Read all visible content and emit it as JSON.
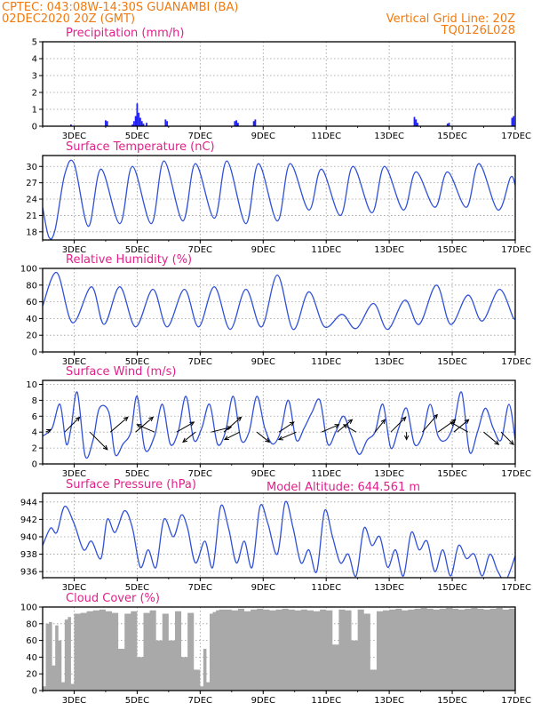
{
  "header": {
    "line1_left": "CPTEC:   043:08W-14:30S   GUANAMBI (BA)",
    "line2_left": "02DEC2020 20Z (GMT)",
    "line1_right": "Vertical Grid Line: 20Z",
    "line2_right": "TQ0126L028"
  },
  "x_axis": {
    "range_days": [
      2.0,
      17.0
    ],
    "tick_days": [
      3,
      5,
      7,
      9,
      11,
      13,
      15,
      17
    ],
    "tick_labels": [
      "3DEC",
      "5DEC",
      "7DEC",
      "9DEC",
      "11DEC",
      "13DEC",
      "15DEC",
      "17DEC"
    ]
  },
  "model_altitude_label": "Model Altitude: 644.561 m",
  "colors": {
    "line": "#3050d8",
    "bar": "#2020f0",
    "cloud": "#a9a9a9",
    "header": "#f07a10",
    "title": "#e0218a"
  },
  "chart_data": [
    {
      "type": "bar",
      "title": "Precipitation (mm/h)",
      "ylim": [
        0,
        5
      ],
      "yticks": [
        0,
        1,
        2,
        3,
        4,
        5
      ],
      "grid": true,
      "x_unit": "day of December 2020",
      "x": [
        2.9,
        4.0,
        4.05,
        4.85,
        4.9,
        4.95,
        5.0,
        5.05,
        5.1,
        5.15,
        5.2,
        5.3,
        5.9,
        5.95,
        8.1,
        8.15,
        8.2,
        8.7,
        8.75,
        13.8,
        13.85,
        13.9,
        14.85,
        14.9,
        16.9,
        16.95
      ],
      "values": [
        0.1,
        0.35,
        0.3,
        0.1,
        0.3,
        0.6,
        1.35,
        0.8,
        0.5,
        0.3,
        0.15,
        0.2,
        0.4,
        0.3,
        0.3,
        0.35,
        0.2,
        0.3,
        0.4,
        0.55,
        0.4,
        0.2,
        0.15,
        0.2,
        0.5,
        0.6
      ]
    },
    {
      "type": "line",
      "title": "Surface Temperature (nC)",
      "ylim": [
        16.5,
        32
      ],
      "yticks": [
        18,
        21,
        24,
        27,
        30
      ],
      "grid": true,
      "x": [
        2.0,
        2.2,
        2.4,
        2.7,
        3.0,
        3.45,
        3.85,
        4.45,
        4.85,
        5.45,
        5.85,
        6.45,
        6.85,
        7.45,
        7.85,
        8.45,
        8.85,
        9.45,
        9.85,
        10.45,
        10.85,
        11.45,
        11.85,
        12.45,
        12.85,
        13.45,
        13.85,
        14.45,
        14.85,
        15.45,
        15.85,
        16.45,
        16.85,
        17.0
      ],
      "values": [
        22.5,
        17.0,
        18.5,
        28.5,
        30.5,
        19.0,
        29.5,
        19.5,
        30.0,
        19.5,
        31.0,
        20.0,
        30.5,
        20.5,
        31.0,
        19.5,
        30.5,
        20.0,
        30.5,
        22.0,
        29.5,
        21.0,
        30.0,
        21.5,
        30.0,
        22.0,
        29.0,
        22.5,
        29.0,
        22.5,
        30.5,
        22.0,
        28.0,
        26.5
      ]
    },
    {
      "type": "line",
      "title": "Relative Humidity (%)",
      "ylim": [
        0,
        100
      ],
      "yticks": [
        0,
        20,
        40,
        60,
        80,
        100
      ],
      "grid": true,
      "x": [
        2.0,
        2.45,
        2.95,
        3.55,
        3.95,
        4.45,
        4.95,
        5.5,
        5.95,
        6.5,
        6.95,
        7.45,
        7.95,
        8.45,
        8.95,
        9.45,
        9.95,
        10.45,
        10.95,
        11.5,
        11.95,
        12.5,
        12.95,
        13.5,
        13.95,
        14.5,
        14.95,
        15.5,
        15.95,
        16.5,
        16.95,
        17.0
      ],
      "values": [
        55,
        95,
        35,
        78,
        33,
        78,
        30,
        75,
        30,
        75,
        30,
        78,
        27,
        75,
        30,
        92,
        27,
        72,
        30,
        45,
        28,
        58,
        27,
        62,
        33,
        80,
        33,
        68,
        37,
        75,
        40,
        50
      ]
    },
    {
      "type": "line",
      "title": "Surface Wind (m/s)",
      "ylim": [
        0,
        10.5
      ],
      "yticks": [
        0,
        2,
        4,
        6,
        8,
        10
      ],
      "grid": true,
      "x": [
        2.0,
        2.3,
        2.55,
        2.75,
        2.9,
        3.1,
        3.35,
        3.6,
        3.8,
        4.1,
        4.3,
        4.55,
        4.8,
        5.0,
        5.25,
        5.55,
        5.8,
        6.05,
        6.3,
        6.55,
        6.8,
        7.05,
        7.3,
        7.55,
        7.8,
        8.05,
        8.3,
        8.55,
        8.8,
        9.05,
        9.3,
        9.55,
        9.8,
        10.05,
        10.3,
        10.55,
        10.8,
        11.05,
        11.3,
        11.55,
        11.8,
        12.05,
        12.3,
        12.55,
        12.8,
        13.05,
        13.3,
        13.55,
        13.8,
        14.05,
        14.3,
        14.55,
        14.8,
        15.05,
        15.3,
        15.55,
        15.8,
        16.05,
        16.3,
        16.55,
        16.8,
        17.0
      ],
      "values": [
        3.5,
        4.5,
        7.5,
        2.5,
        4.5,
        9.0,
        1.0,
        3.0,
        7.0,
        6.5,
        1.2,
        2.5,
        4.0,
        8.5,
        1.8,
        3.5,
        7.5,
        2.5,
        4.0,
        8.5,
        3.0,
        4.5,
        7.5,
        2.5,
        4.0,
        8.5,
        3.0,
        4.0,
        8.5,
        4.5,
        2.5,
        4.0,
        8.0,
        3.0,
        4.5,
        6.5,
        8.0,
        2.5,
        4.0,
        6.0,
        3.5,
        1.2,
        3.0,
        4.0,
        7.5,
        2.0,
        4.5,
        7.0,
        2.5,
        3.5,
        7.5,
        3.5,
        3.0,
        5.0,
        9.0,
        1.5,
        4.0,
        7.0,
        4.5,
        3.0,
        7.5,
        3.0
      ],
      "vectors": {
        "x": [
          2.1,
          2.7,
          3.5,
          4.15,
          4.95,
          5.55,
          6.25,
          6.85,
          7.35,
          7.75,
          8.25,
          8.8,
          9.5,
          10.05,
          10.85,
          11.35,
          11.95,
          12.55,
          13.05,
          13.55,
          14.05,
          14.55,
          15.05,
          15.5,
          16.0,
          16.55
        ],
        "u": [
          2,
          6,
          7,
          7,
          7,
          -7,
          7,
          -5,
          8,
          7,
          -6,
          5,
          6,
          -7,
          7,
          6,
          -5,
          4,
          6,
          0,
          6,
          7,
          6,
          -7,
          6,
          5
        ],
        "v": [
          1,
          6,
          -7,
          6,
          6,
          3,
          4,
          -4,
          2,
          6,
          -3,
          -4,
          4,
          -3,
          3,
          5,
          3,
          5,
          6,
          -3,
          7,
          5,
          5,
          4,
          -5,
          -5
        ]
      }
    },
    {
      "type": "line",
      "title": "Surface Pressure (hPa)",
      "ylim": [
        935.3,
        945
      ],
      "yticks": [
        936,
        938,
        940,
        942,
        944
      ],
      "grid": true,
      "x": [
        2.0,
        2.25,
        2.45,
        2.7,
        3.0,
        3.3,
        3.55,
        3.85,
        4.05,
        4.3,
        4.6,
        4.85,
        5.1,
        5.35,
        5.6,
        5.85,
        6.15,
        6.4,
        6.6,
        6.85,
        7.15,
        7.4,
        7.65,
        7.9,
        8.15,
        8.4,
        8.65,
        8.9,
        9.15,
        9.45,
        9.7,
        9.95,
        10.2,
        10.45,
        10.7,
        10.95,
        11.2,
        11.45,
        11.7,
        11.95,
        12.2,
        12.45,
        12.7,
        12.95,
        13.2,
        13.45,
        13.7,
        13.95,
        14.2,
        14.45,
        14.7,
        14.95,
        15.2,
        15.45,
        15.7,
        15.95,
        16.2,
        16.45,
        16.7,
        17.0
      ],
      "values": [
        939.0,
        941.0,
        940.5,
        943.5,
        941.5,
        938.5,
        939.5,
        937.5,
        942.0,
        940.5,
        943.0,
        941.0,
        936.5,
        938.5,
        936.5,
        942.0,
        940.0,
        942.5,
        941.0,
        937.0,
        939.5,
        936.5,
        943.5,
        941.0,
        937.0,
        939.5,
        936.5,
        943.5,
        941.5,
        938.0,
        944.0,
        941.0,
        937.0,
        938.5,
        936.0,
        943.0,
        940.0,
        937.0,
        938.0,
        935.5,
        941.0,
        939.0,
        940.0,
        936.5,
        938.5,
        935.5,
        940.5,
        938.5,
        939.5,
        936.0,
        938.5,
        935.5,
        939.0,
        937.5,
        938.0,
        935.5,
        938.0,
        936.0,
        935.0,
        937.8
      ]
    },
    {
      "type": "area",
      "title": "Cloud Cover (%)",
      "ylim": [
        0,
        100
      ],
      "yticks": [
        0,
        20,
        40,
        60,
        80,
        100
      ],
      "grid": true,
      "x": [
        2.0,
        2.1,
        2.2,
        2.3,
        2.4,
        2.5,
        2.6,
        2.7,
        2.8,
        2.9,
        3.0,
        3.2,
        3.4,
        3.6,
        3.8,
        4.0,
        4.2,
        4.4,
        4.6,
        4.8,
        5.0,
        5.2,
        5.4,
        5.6,
        5.8,
        6.0,
        6.2,
        6.4,
        6.6,
        6.8,
        7.0,
        7.1,
        7.2,
        7.3,
        7.4,
        7.5,
        7.6,
        7.8,
        8.0,
        8.2,
        8.4,
        8.6,
        8.8,
        9.0,
        9.2,
        9.4,
        9.6,
        9.8,
        10.0,
        10.2,
        10.4,
        10.6,
        10.8,
        11.0,
        11.2,
        11.4,
        11.6,
        11.8,
        12.0,
        12.2,
        12.4,
        12.6,
        12.8,
        13.0,
        13.2,
        13.4,
        13.6,
        13.8,
        14.0,
        14.2,
        14.4,
        14.6,
        14.8,
        15.0,
        15.2,
        15.4,
        15.6,
        15.8,
        16.0,
        16.2,
        16.4,
        16.6,
        16.8,
        17.0
      ],
      "values": [
        5,
        80,
        82,
        30,
        78,
        60,
        10,
        85,
        88,
        8,
        92,
        93,
        95,
        96,
        97,
        95,
        93,
        50,
        92,
        95,
        40,
        93,
        96,
        60,
        92,
        60,
        95,
        40,
        93,
        25,
        5,
        50,
        10,
        92,
        94,
        96,
        97,
        97,
        96,
        98,
        95,
        97,
        98,
        97,
        96,
        97,
        98,
        97,
        96,
        97,
        96,
        95,
        97,
        96,
        55,
        97,
        96,
        60,
        97,
        92,
        25,
        95,
        96,
        97,
        98,
        96,
        97,
        98,
        99,
        98,
        97,
        98,
        99,
        98,
        97,
        98,
        99,
        98,
        97,
        98,
        99,
        97,
        98,
        99
      ]
    }
  ]
}
